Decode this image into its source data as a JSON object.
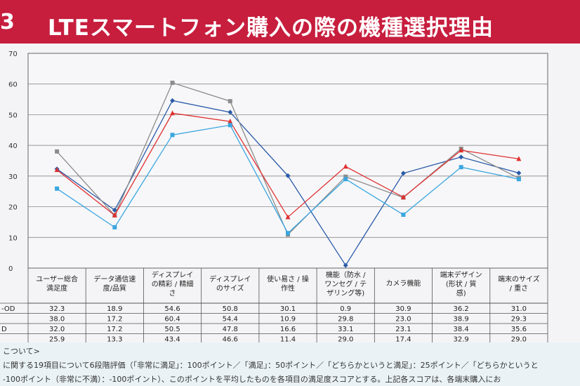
{
  "header": {
    "number": "3",
    "title": "LTEスマートフォン購入の際の機種選択理由"
  },
  "chart_data": {
    "type": "line",
    "ylim": [
      0,
      70
    ],
    "yticks": [
      0,
      10,
      20,
      30,
      40,
      50,
      60,
      70
    ],
    "categories": [
      [
        "ユーザー総合",
        "満足度"
      ],
      [
        "データ通信速",
        "度/品質"
      ],
      [
        "ディスプレイ",
        "の精彩 / 精細",
        "さ"
      ],
      [
        "ディスプレイ",
        "のサイズ"
      ],
      [
        "使い易さ / 操",
        "作性"
      ],
      [
        "機能（防水 /",
        "ワンセグ / テ",
        "ザリング等)"
      ],
      [
        "カメラ機能"
      ],
      [
        "端末デザイン",
        "(形状 / 質",
        "感)"
      ],
      [
        "端末のサイズ",
        "/ 重さ"
      ]
    ],
    "series": [
      {
        "label": "-OD",
        "color": "#2a5aa8",
        "marker": "diamond",
        "values": [
          32.3,
          18.9,
          54.6,
          50.8,
          30.1,
          0.9,
          30.9,
          36.2,
          31.0
        ]
      },
      {
        "label": "",
        "color": "#8c8c8c",
        "marker": "square",
        "values": [
          38.0,
          17.2,
          60.4,
          54.4,
          10.9,
          29.8,
          23.0,
          38.9,
          29.3
        ]
      },
      {
        "label": "D",
        "color": "#e03030",
        "marker": "triangle",
        "values": [
          32.0,
          17.2,
          50.5,
          47.8,
          16.6,
          33.1,
          23.1,
          38.4,
          35.6
        ]
      },
      {
        "label": "",
        "color": "#3aa6df",
        "marker": "square",
        "values": [
          25.9,
          13.3,
          43.4,
          46.6,
          11.4,
          29.0,
          17.4,
          32.9,
          29.0
        ]
      }
    ],
    "table_values": [
      [
        "32.3",
        "18.9",
        "54.6",
        "50.8",
        "30.1",
        "0.9",
        "30.9",
        "36.2",
        "31.0"
      ],
      [
        "38.0",
        "17.2",
        "60.4",
        "54.4",
        "10.9",
        "29.8",
        "23.0",
        "38.9",
        "29.3"
      ],
      [
        "32.0",
        "17.2",
        "50.5",
        "47.8",
        "16.6",
        "33.1",
        "23.1",
        "38.4",
        "35.6"
      ],
      [
        "25.9",
        "13.3",
        "43.4",
        "46.6",
        "11.4",
        "29.0",
        "17.4",
        "32.9",
        "29.0"
      ]
    ]
  },
  "notes": {
    "line1": "こついて>",
    "line2": "に関する19項目について6段階評価（「非常に満足」：100ポイント／「満足」：50ポイント／「どちらかというと満足」：25ポイント／「どちらかというと",
    "line3": "-100ポイント（非常に不満）：-100ポイント）、このポイントを平均したものを各項目の満足度スコアとする。上記各スコアは、各端末購入にお"
  }
}
